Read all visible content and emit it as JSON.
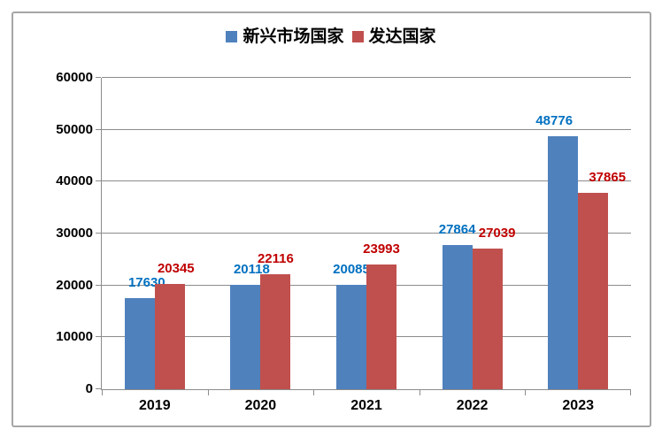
{
  "chart_data": {
    "type": "bar",
    "title": "",
    "categories": [
      "2019",
      "2020",
      "2021",
      "2022",
      "2023"
    ],
    "series": [
      {
        "name": "新兴市场国家",
        "bar_color": "#4F81BD",
        "label_color": "#0070C0",
        "values": [
          17630,
          20118,
          20085,
          27864,
          48776
        ]
      },
      {
        "name": "发达国家",
        "bar_color": "#C0504D",
        "label_color": "#C00000",
        "values": [
          20345,
          22116,
          23993,
          27039,
          37865
        ]
      }
    ],
    "xlabel": "",
    "ylabel": "",
    "ylim": [
      0,
      60000
    ],
    "yticks": [
      0,
      10000,
      20000,
      30000,
      40000,
      50000,
      60000
    ],
    "grid": "horizontal-only",
    "legend_position": "top-center",
    "data_labels": "outside-end"
  },
  "colors": {
    "gridline": "#8c8c8c",
    "axis": "#8c8c8c",
    "tick": "#8c8c8c",
    "frame_border": "#a6a6a6",
    "background": "#ffffff",
    "tick_label": "#000000"
  }
}
